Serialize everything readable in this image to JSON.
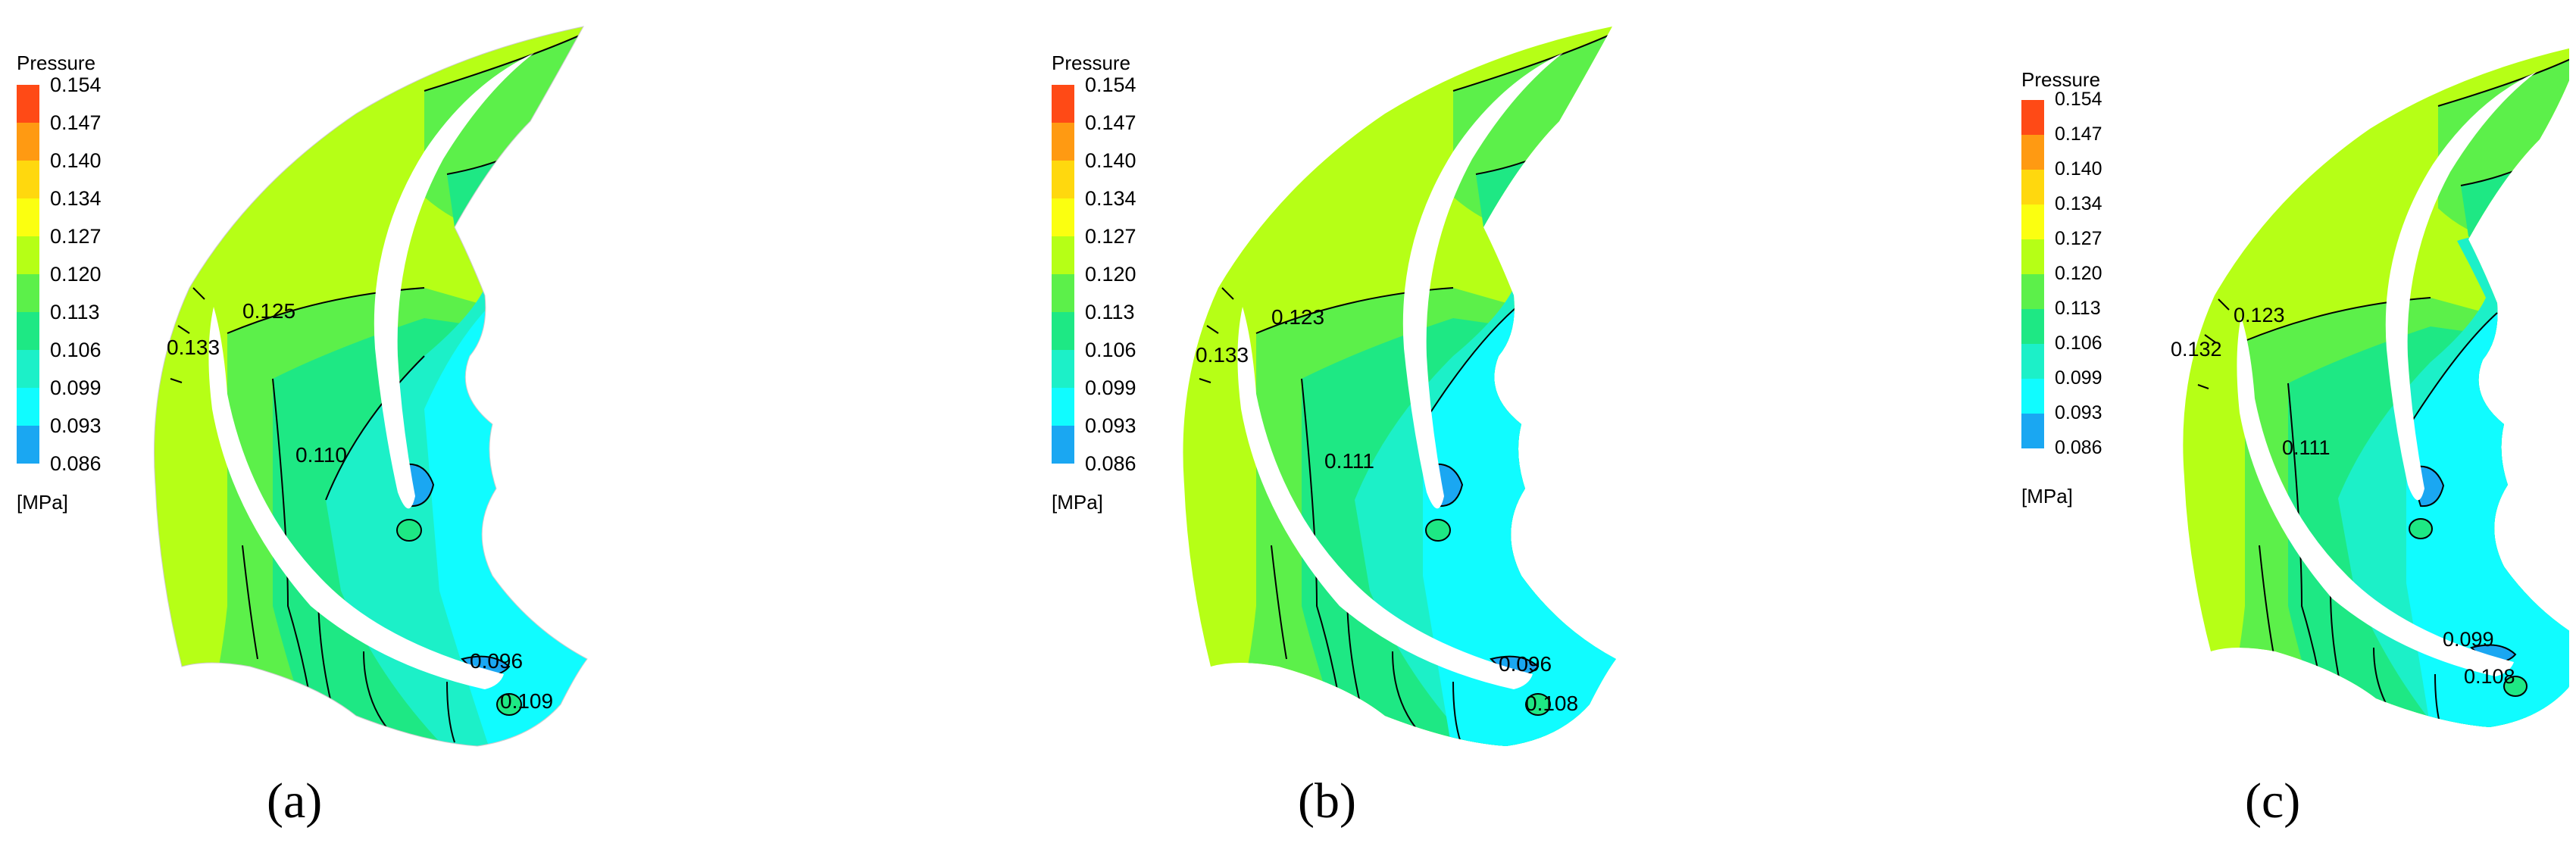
{
  "legend": {
    "title": "Pressure",
    "unit": "[MPa]",
    "ticks": [
      "0.154",
      "0.147",
      "0.140",
      "0.134",
      "0.127",
      "0.120",
      "0.113",
      "0.106",
      "0.099",
      "0.093",
      "0.086"
    ],
    "colors": [
      "#ff4a16",
      "#ff9a12",
      "#ffd80e",
      "#fbff10",
      "#b6ff16",
      "#5cf04a",
      "#1ee884",
      "#1cf0c8",
      "#10fcff",
      "#1aa7f2",
      "#0a4df7"
    ]
  },
  "panels": [
    {
      "caption": "(a)",
      "labels": {
        "outer": "0.133",
        "mid": "0.125",
        "inner": "0.110",
        "trail_low": "0.096",
        "trail_high": "0.109"
      }
    },
    {
      "caption": "(b)",
      "labels": {
        "outer": "0.133",
        "mid": "0.123",
        "inner": "0.111",
        "trail_low": "0.096",
        "trail_high": "0.108"
      }
    },
    {
      "caption": "(c)",
      "labels": {
        "outer": "0.132",
        "mid": "0.123",
        "inner": "0.111",
        "trail_low": "0.099",
        "trail_high": "0.108"
      }
    }
  ]
}
